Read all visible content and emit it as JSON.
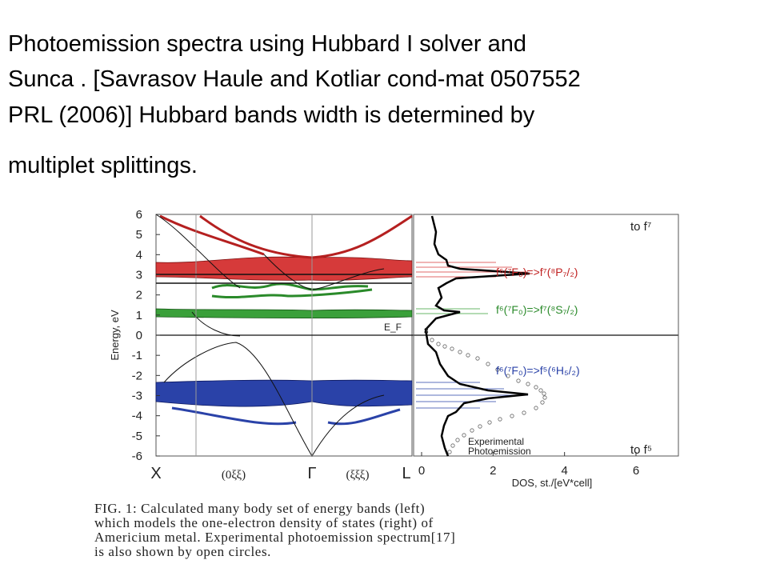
{
  "slide": {
    "title_lines": [
      "Photoemission spectra using Hubbard I solver  and",
      "Sunca . [Savrasov Haule and Kotliar cond-mat 0507552",
      "PRL (2006)]  Hubbard bands width is determined  by",
      "multiplet splittings."
    ]
  },
  "figure": {
    "bands": {
      "y_label": "Energy, eV",
      "yticks": [
        -6,
        -5,
        -4,
        -3,
        -2,
        -1,
        0,
        1,
        2,
        3,
        4,
        5,
        6
      ],
      "k_labels": [
        "X",
        "(0ξξ)",
        "Γ",
        "(ξξξ)",
        "L"
      ],
      "fermi_label": "E_F"
    },
    "dos": {
      "x_label": "DOS, st./[eV*cell]",
      "xticks": [
        0,
        2,
        4,
        6
      ],
      "marker": "8",
      "annotations": [
        "to f⁷",
        "f⁶(⁷F₀)=>f⁷(⁸P₇/₂)",
        "f⁶(⁷F₀)=>f⁷(⁸S₇/₂)",
        "f⁶(⁷F₀)=>f⁵(⁶H₅/₂)",
        "Experimental",
        "Photoemission",
        "to f⁵"
      ]
    },
    "caption_lines": [
      "FIG. 1:  Calculated many body set of energy bands (left)",
      "which models the one-electron density of states (right) of",
      "Americium metal. Experimental photoemission spectrum[17]",
      "is also shown by open circles."
    ]
  }
}
